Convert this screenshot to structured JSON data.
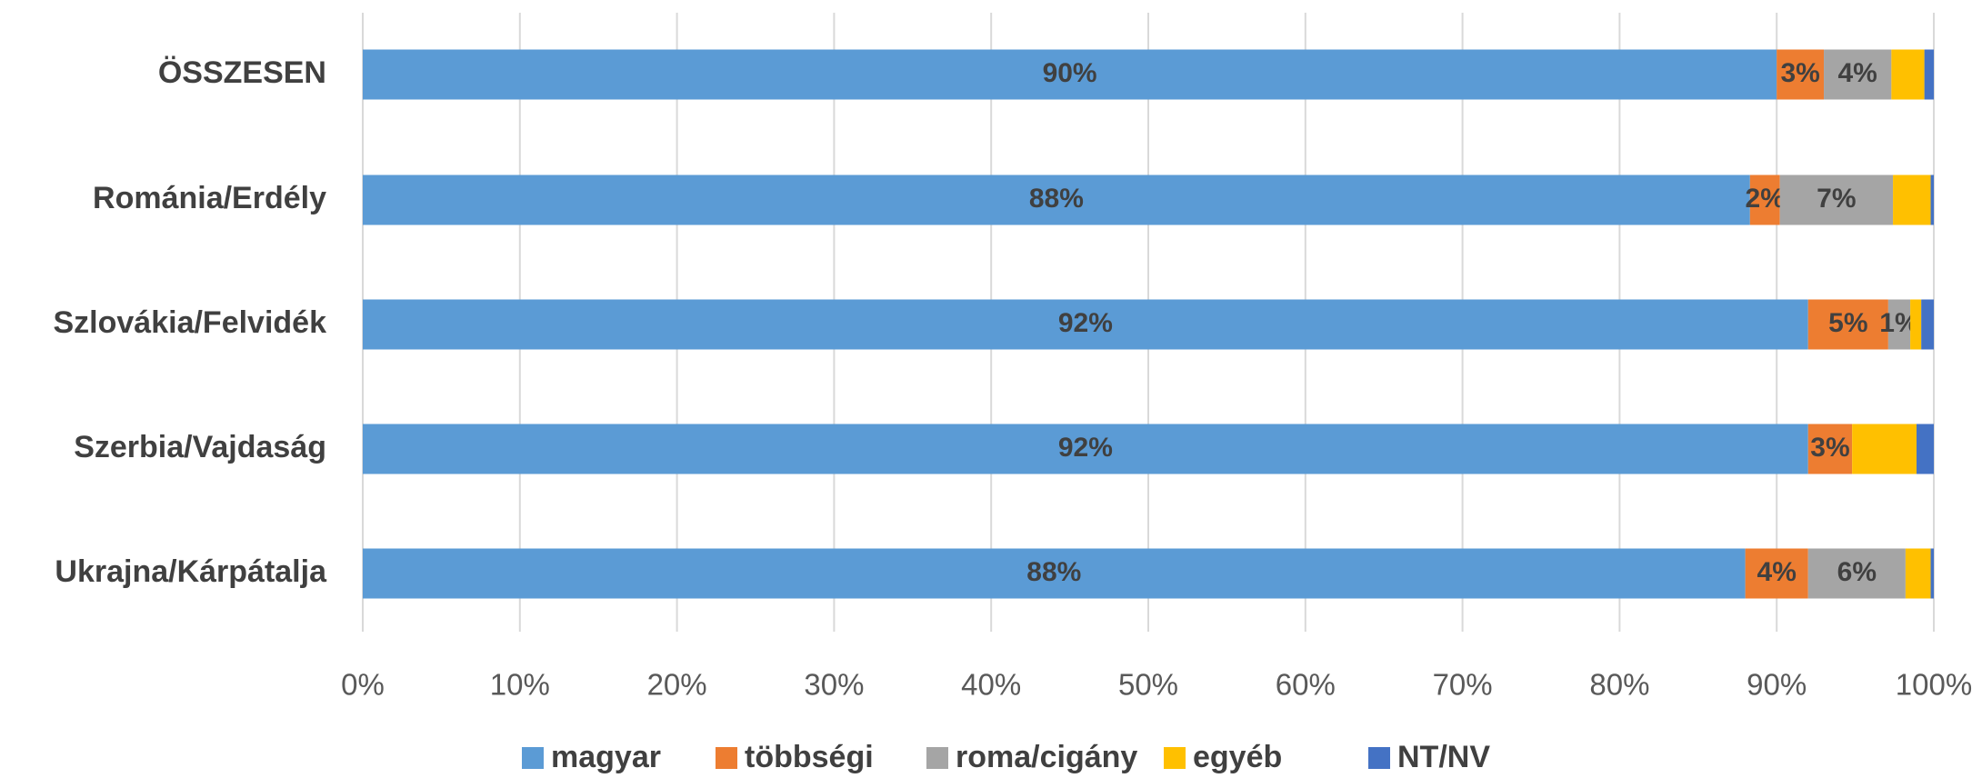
{
  "chart_data": {
    "type": "stacked_bar_horizontal",
    "categories": [
      "ÖSSZESEN",
      "Románia/Erdély",
      "Szlovákia/Felvidék",
      "Szerbia/Vajdaság",
      "Ukrajna/Kárpátalja"
    ],
    "series": [
      {
        "name": "magyar",
        "color": "#5b9bd5",
        "values": [
          90,
          88.3,
          92,
          92,
          88
        ],
        "value_labels": [
          "90%",
          "88%",
          "92%",
          "92%",
          "88%"
        ]
      },
      {
        "name": "többségi",
        "color": "#ed7d31",
        "values": [
          3,
          1.9,
          5.1,
          2.8,
          4
        ],
        "value_labels": [
          "3%",
          "2%",
          "5%",
          "3%",
          "4%"
        ]
      },
      {
        "name": "roma/cigány",
        "color": "#a5a5a5",
        "values": [
          4.3,
          7.2,
          1.4,
          0,
          6.2
        ],
        "value_labels": [
          "4%",
          "7%",
          "1%",
          null,
          "6%"
        ]
      },
      {
        "name": "egyéb",
        "color": "#ffc000",
        "values": [
          2.1,
          2.4,
          0.7,
          4.1,
          1.6
        ]
      },
      {
        "name": "NT/NV",
        "color": "#4472c4",
        "values": [
          0.6,
          0.2,
          0.8,
          1.1,
          0.2
        ]
      }
    ],
    "xlim": [
      0,
      100
    ],
    "xticks": [
      {
        "value": 0,
        "label": "0%"
      },
      {
        "value": 10,
        "label": "10%"
      },
      {
        "value": 20,
        "label": "20%"
      },
      {
        "value": 30,
        "label": "30%"
      },
      {
        "value": 40,
        "label": "40%"
      },
      {
        "value": 50,
        "label": "50%"
      },
      {
        "value": 60,
        "label": "60%"
      },
      {
        "value": 70,
        "label": "70%"
      },
      {
        "value": 80,
        "label": "80%"
      },
      {
        "value": 90,
        "label": "90%"
      },
      {
        "value": 100,
        "label": "100%"
      }
    ],
    "grid": true,
    "legend": "bottom"
  }
}
